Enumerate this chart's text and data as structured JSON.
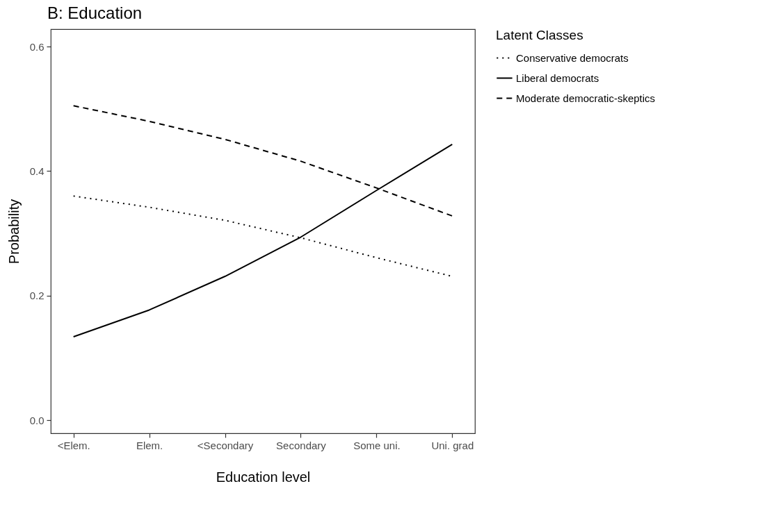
{
  "chart_data": {
    "type": "line",
    "title": "B: Education",
    "xlabel": "Education level",
    "ylabel": "Probability",
    "legend_title": "Latent Classes",
    "categories": [
      "<Elem.",
      "Elem.",
      "<Secondary",
      "Secondary",
      "Some uni.",
      "Uni. grad"
    ],
    "series": [
      {
        "name": "Conservative democrats",
        "color": "#000000",
        "line_style": "dotted",
        "values": [
          0.36,
          0.342,
          0.321,
          0.293,
          0.261,
          0.231
        ]
      },
      {
        "name": "Liberal democrats",
        "color": "#000000",
        "line_style": "solid",
        "values": [
          0.134,
          0.177,
          0.231,
          0.294,
          0.369,
          0.443
        ]
      },
      {
        "name": "Moderate democratic-skeptics",
        "color": "#000000",
        "line_style": "dashed",
        "values": [
          0.505,
          0.48,
          0.451,
          0.416,
          0.373,
          0.328
        ]
      }
    ],
    "ylim": [
      -0.021,
      0.628
    ],
    "yticks": [
      {
        "value": 0,
        "label": "0.0"
      },
      0.2,
      0.4,
      0.6
    ],
    "grid": false,
    "legend": "right",
    "marker": "none"
  }
}
